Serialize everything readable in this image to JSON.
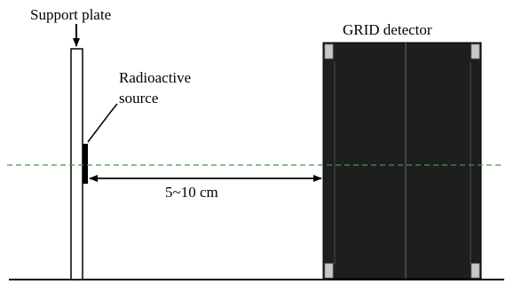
{
  "labels": {
    "support_plate": "Support plate",
    "radioactive_line1": "Radioactive",
    "radioactive_line2": "source",
    "detector": "GRID detector",
    "distance": "5~10 cm"
  },
  "colors": {
    "line": "#000000",
    "plate_fill": "#ffffff",
    "source_fill": "#000000",
    "detector_fill": "#1e1e1e",
    "detector_corner": "#c8c8c8",
    "beam_axis": "#3a9a3a"
  }
}
